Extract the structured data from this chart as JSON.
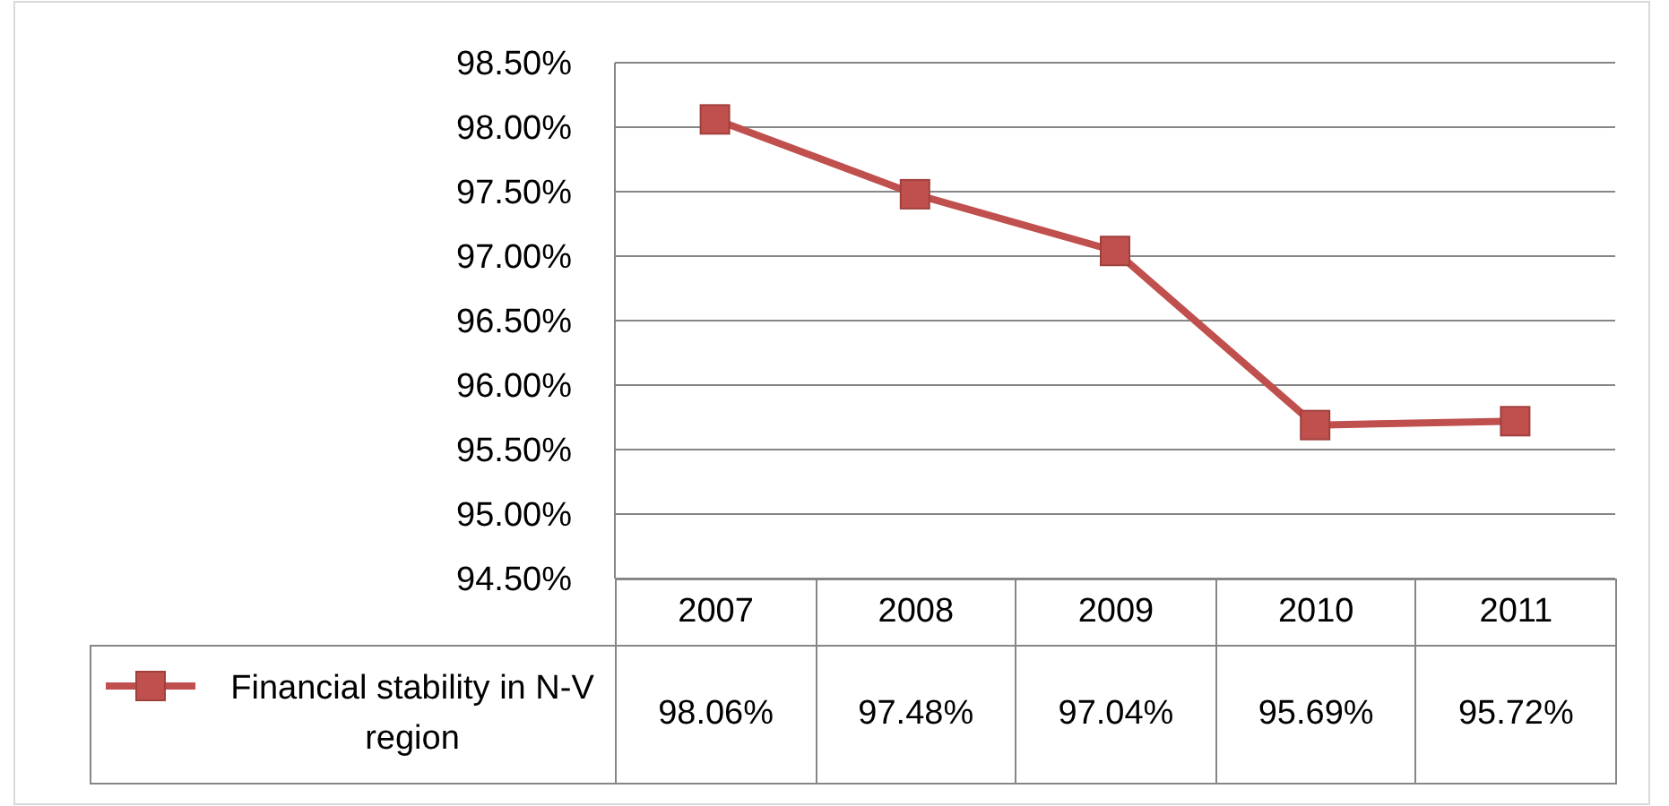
{
  "chart_data": {
    "type": "line",
    "categories": [
      "2007",
      "2008",
      "2009",
      "2010",
      "2011"
    ],
    "series": [
      {
        "name": "Financial stability in N-V region",
        "color": "#c0504d",
        "values": [
          98.06,
          97.48,
          97.04,
          95.69,
          95.72
        ],
        "value_labels": [
          "98.06%",
          "97.48%",
          "97.04%",
          "95.69%",
          "95.72%"
        ]
      }
    ],
    "ylim": [
      94.5,
      98.5
    ],
    "yticks": [
      {
        "value": 94.5,
        "label": "94.50%"
      },
      {
        "value": 95,
        "label": "95.00%"
      },
      {
        "value": 95.5,
        "label": "95.50%"
      },
      {
        "value": 96,
        "label": "96.00%"
      },
      {
        "value": 96.5,
        "label": "96.50%"
      },
      {
        "value": 97,
        "label": "97.00%"
      },
      {
        "value": 97.5,
        "label": "97.50%"
      },
      {
        "value": 98,
        "label": "98.00%"
      },
      {
        "value": 98.5,
        "label": "98.50%"
      }
    ],
    "grid": "y",
    "legend": "bottom",
    "marker": "square",
    "line_style": "solid"
  }
}
